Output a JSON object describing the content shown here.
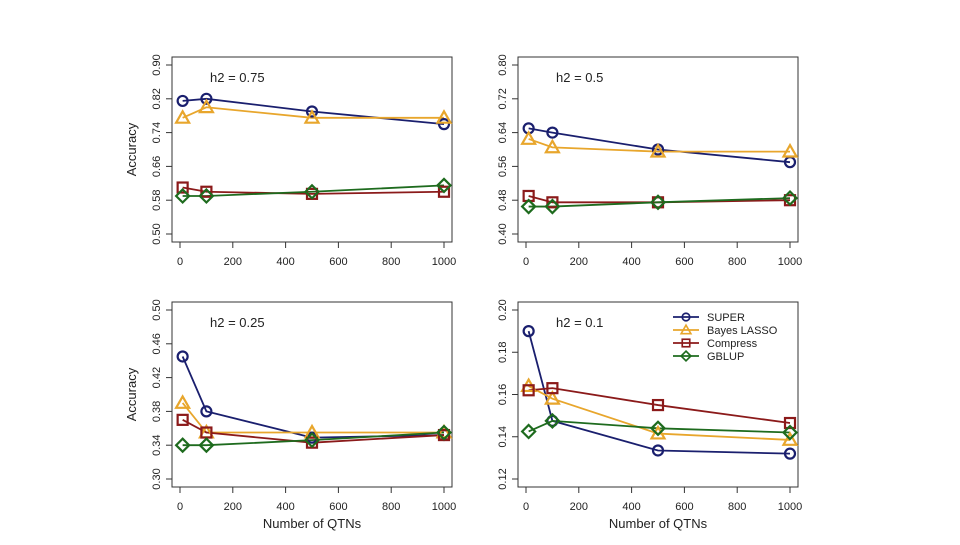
{
  "colors": {
    "SUPER": "#1a1f6e",
    "Bayes LASSO": "#e8a62c",
    "Compress": "#8b1a1a",
    "GBLUP": "#1e6b1e",
    "axis": "#333333"
  },
  "chart_data": [
    {
      "type": "line",
      "title": "h2 = 0.75",
      "xlabel": "",
      "ylabel": "Accuracy",
      "xlim": [
        0,
        1000
      ],
      "ylim": [
        0.5,
        0.9
      ],
      "xticks": [
        0,
        200,
        400,
        600,
        800,
        1000
      ],
      "xtick_labels": [
        "0",
        "200",
        "400",
        "600",
        "800",
        "1000"
      ],
      "yticks": [
        0.5,
        0.58,
        0.66,
        0.74,
        0.82,
        0.9
      ],
      "ytick_labels": [
        "0.50",
        "0.58",
        "0.66",
        "0.74",
        "0.82",
        "0.90"
      ],
      "series": [
        {
          "name": "SUPER",
          "marker": "circle",
          "x": [
            10,
            100,
            500,
            1000
          ],
          "y": [
            0.815,
            0.82,
            0.79,
            0.76
          ]
        },
        {
          "name": "Bayes LASSO",
          "marker": "triangle",
          "x": [
            10,
            100,
            500,
            1000
          ],
          "y": [
            0.775,
            0.8,
            0.775,
            0.775
          ]
        },
        {
          "name": "Compress",
          "marker": "square",
          "x": [
            10,
            100,
            500,
            1000
          ],
          "y": [
            0.61,
            0.6,
            0.595,
            0.6
          ]
        },
        {
          "name": "GBLUP",
          "marker": "diamond",
          "x": [
            10,
            100,
            500,
            1000
          ],
          "y": [
            0.59,
            0.59,
            0.6,
            0.615
          ]
        }
      ]
    },
    {
      "type": "line",
      "title": "h2 = 0.5",
      "xlabel": "",
      "ylabel": "",
      "xlim": [
        0,
        1000
      ],
      "ylim": [
        0.4,
        0.8
      ],
      "xticks": [
        0,
        200,
        400,
        600,
        800,
        1000
      ],
      "xtick_labels": [
        "0",
        "200",
        "400",
        "600",
        "800",
        "1000"
      ],
      "yticks": [
        0.4,
        0.48,
        0.56,
        0.64,
        0.72,
        0.8
      ],
      "ytick_labels": [
        "0.40",
        "0.48",
        "0.56",
        "0.64",
        "0.72",
        "0.80"
      ],
      "series": [
        {
          "name": "SUPER",
          "marker": "circle",
          "x": [
            10,
            100,
            500,
            1000
          ],
          "y": [
            0.65,
            0.64,
            0.6,
            0.57
          ]
        },
        {
          "name": "Bayes LASSO",
          "marker": "triangle",
          "x": [
            10,
            100,
            500,
            1000
          ],
          "y": [
            0.625,
            0.605,
            0.595,
            0.595
          ]
        },
        {
          "name": "Compress",
          "marker": "square",
          "x": [
            10,
            100,
            500,
            1000
          ],
          "y": [
            0.49,
            0.475,
            0.475,
            0.48
          ]
        },
        {
          "name": "GBLUP",
          "marker": "diamond",
          "x": [
            10,
            100,
            500,
            1000
          ],
          "y": [
            0.465,
            0.465,
            0.475,
            0.485
          ]
        }
      ]
    },
    {
      "type": "line",
      "title": "h2 = 0.25",
      "xlabel": "Number of QTNs",
      "ylabel": "Accuracy",
      "xlim": [
        0,
        1000
      ],
      "ylim": [
        0.3,
        0.5
      ],
      "xticks": [
        0,
        200,
        400,
        600,
        800,
        1000
      ],
      "xtick_labels": [
        "0",
        "200",
        "400",
        "600",
        "800",
        "1000"
      ],
      "yticks": [
        0.3,
        0.34,
        0.38,
        0.42,
        0.46,
        0.5
      ],
      "ytick_labels": [
        "0.30",
        "0.34",
        "0.38",
        "0.42",
        "0.46",
        "0.50"
      ],
      "series": [
        {
          "name": "SUPER",
          "marker": "circle",
          "x": [
            10,
            100,
            500,
            1000
          ],
          "y": [
            0.445,
            0.38,
            0.349,
            0.352
          ]
        },
        {
          "name": "Bayes LASSO",
          "marker": "triangle",
          "x": [
            10,
            100,
            500,
            1000
          ],
          "y": [
            0.39,
            0.355,
            0.355,
            0.355
          ]
        },
        {
          "name": "Compress",
          "marker": "square",
          "x": [
            10,
            100,
            500,
            1000
          ],
          "y": [
            0.37,
            0.355,
            0.343,
            0.352
          ]
        },
        {
          "name": "GBLUP",
          "marker": "diamond",
          "x": [
            10,
            100,
            500,
            1000
          ],
          "y": [
            0.34,
            0.34,
            0.346,
            0.355
          ]
        }
      ]
    },
    {
      "type": "line",
      "title": "h2 = 0.1",
      "xlabel": "Number of QTNs",
      "ylabel": "",
      "xlim": [
        0,
        1000
      ],
      "ylim": [
        0.12,
        0.2
      ],
      "xticks": [
        0,
        200,
        400,
        600,
        800,
        1000
      ],
      "xtick_labels": [
        "0",
        "200",
        "400",
        "600",
        "800",
        "1000"
      ],
      "yticks": [
        0.12,
        0.14,
        0.16,
        0.18,
        0.2
      ],
      "ytick_labels": [
        "0.12",
        "0.14",
        "0.16",
        "0.18",
        "0.20"
      ],
      "series": [
        {
          "name": "SUPER",
          "marker": "circle",
          "x": [
            10,
            100,
            500,
            1000
          ],
          "y": [
            0.19,
            0.1475,
            0.1335,
            0.132
          ]
        },
        {
          "name": "Bayes LASSO",
          "marker": "triangle",
          "x": [
            10,
            100,
            500,
            1000
          ],
          "y": [
            0.164,
            0.158,
            0.1415,
            0.1385
          ]
        },
        {
          "name": "Compress",
          "marker": "square",
          "x": [
            10,
            100,
            500,
            1000
          ],
          "y": [
            0.162,
            0.163,
            0.155,
            0.1465
          ]
        },
        {
          "name": "GBLUP",
          "marker": "diamond",
          "x": [
            10,
            100,
            500,
            1000
          ],
          "y": [
            0.1425,
            0.1475,
            0.144,
            0.142
          ]
        }
      ],
      "legend": {
        "placement": "top-right",
        "entries": [
          "SUPER",
          "Bayes LASSO",
          "Compress",
          "GBLUP"
        ]
      }
    }
  ]
}
